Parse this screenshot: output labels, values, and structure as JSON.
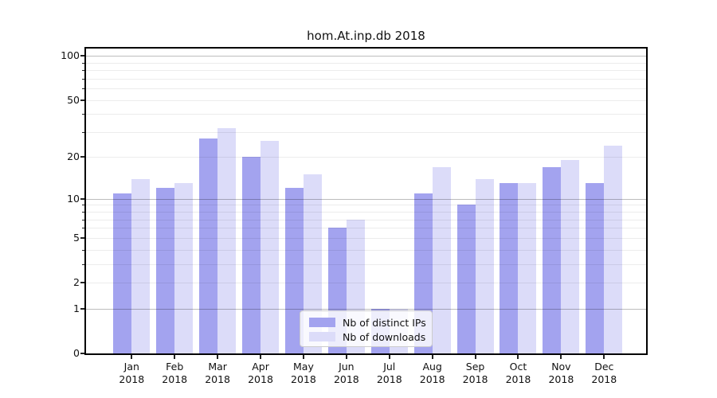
{
  "chart_data": {
    "type": "bar",
    "title": "hom.At.inp.db 2018",
    "categories": [
      "Jan 2018",
      "Feb 2018",
      "Mar 2018",
      "Apr 2018",
      "May 2018",
      "Jun 2018",
      "Jul 2018",
      "Aug 2018",
      "Sep 2018",
      "Oct 2018",
      "Nov 2018",
      "Dec 2018"
    ],
    "x_tick_months": [
      "Jan",
      "Feb",
      "Mar",
      "Apr",
      "May",
      "Jun",
      "Jul",
      "Aug",
      "Sep",
      "Oct",
      "Nov",
      "Dec"
    ],
    "x_tick_year": "2018",
    "series": [
      {
        "name": "Nb of distinct IPs",
        "color": "#a3a3ef",
        "values": [
          11,
          12,
          27,
          20,
          12,
          6,
          1,
          11,
          9,
          13,
          17,
          13
        ]
      },
      {
        "name": "Nb of downloads",
        "color": "#dcdcf9",
        "values": [
          14,
          13,
          32,
          26,
          15,
          7,
          1,
          17,
          14,
          13,
          19,
          24
        ]
      }
    ],
    "xlabel": "",
    "ylabel": "",
    "yscale": "log1p",
    "ylim": [
      0,
      112
    ],
    "y_tick_labels": [
      "100",
      "50",
      "20",
      "10",
      "5",
      "2",
      "1",
      "0"
    ],
    "y_tick_values": [
      100,
      50,
      20,
      10,
      5,
      2,
      1,
      0
    ],
    "y_major_grid_values": [
      1,
      10,
      100
    ],
    "y_minor_grid_values": [
      2,
      3,
      4,
      5,
      6,
      7,
      8,
      9,
      20,
      30,
      40,
      50,
      60,
      70,
      80,
      90
    ],
    "grid": true,
    "legend_position": "lower center"
  }
}
